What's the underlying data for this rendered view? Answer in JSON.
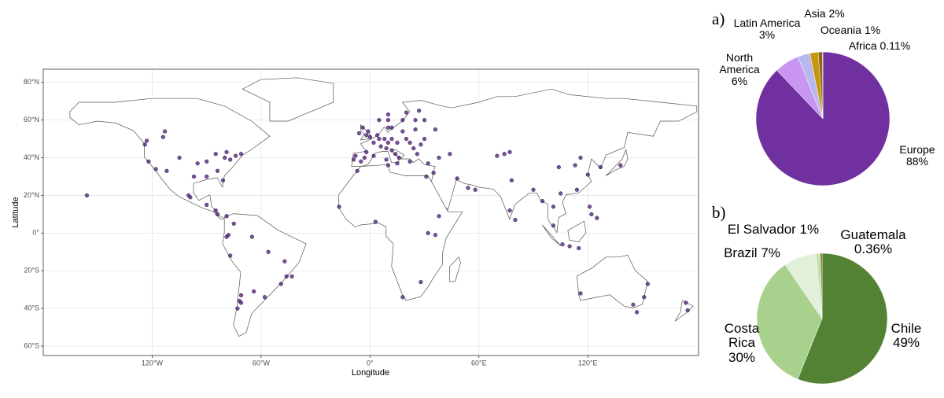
{
  "chart_data": [
    {
      "type": "scatter",
      "x_label": "Longitude",
      "y_label": "Latitude",
      "x": [
        2,
        5,
        8,
        10,
        12,
        15,
        4,
        6,
        9,
        12,
        -3,
        -5,
        -8,
        -2,
        2,
        14,
        16,
        20,
        22,
        18,
        25,
        10,
        12,
        18,
        25,
        10,
        5,
        -2,
        -1,
        -6,
        -4,
        0,
        24,
        26,
        28,
        30,
        36,
        30,
        35,
        32,
        38,
        44,
        22,
        -9,
        10,
        20,
        27,
        15,
        9,
        74,
        70,
        77,
        78,
        77,
        80,
        104,
        116,
        113,
        120,
        114,
        105,
        101,
        121,
        122,
        125,
        101,
        110,
        115,
        127,
        138,
        90,
        95,
        106,
        48,
        58,
        54,
        -124,
        -122,
        -118,
        -112,
        -105,
        -97,
        -95,
        -90,
        -85,
        -80,
        -77,
        -74,
        -71,
        -79,
        -84,
        -81,
        -90,
        -100,
        -99,
        -90,
        -84,
        -85,
        -79,
        -75,
        -78,
        -79,
        -77,
        -65,
        -56,
        -47,
        -43,
        -46,
        -49,
        -58,
        -64,
        -71,
        -72,
        -73,
        -71,
        -113,
        -114,
        -123,
        -156,
        -7,
        10,
        31,
        36,
        32,
        28,
        18,
        3,
        -17,
        38,
        151,
        145,
        153,
        116,
        175,
        174,
        147
      ],
      "y": [
        48,
        50,
        50,
        48,
        50,
        48,
        52,
        46,
        45,
        44,
        40,
        38,
        41,
        43,
        41,
        42,
        40,
        50,
        48,
        54,
        55,
        56,
        56,
        60,
        60,
        60,
        60,
        52,
        54,
        53,
        56,
        51,
        45,
        42,
        47,
        50,
        55,
        60,
        32,
        37,
        40,
        42,
        38,
        39,
        63,
        64,
        65,
        37,
        39,
        42,
        41,
        43,
        28,
        12,
        7,
        35,
        40,
        36,
        31,
        23,
        21,
        14,
        14,
        10,
        8,
        4,
        -7,
        -8,
        35,
        36,
        23,
        17,
        -6,
        29,
        23,
        24,
        47,
        38,
        34,
        33,
        40,
        30,
        37,
        38,
        42,
        40,
        39,
        41,
        42,
        43,
        33,
        28,
        30,
        20,
        19,
        15,
        10,
        12,
        9,
        5,
        -1,
        -2,
        -12,
        -2,
        -10,
        -15,
        -23,
        -23,
        -27,
        -34,
        -31,
        -33,
        -36,
        -40,
        -37,
        54,
        51,
        49,
        20,
        33,
        36,
        30,
        -1,
        0,
        -26,
        -34,
        6,
        14,
        9,
        -34,
        -38,
        -27,
        -32,
        -41,
        -37,
        -42
      ],
      "color": "#4b1a7a",
      "xlim": [
        -180,
        181
      ],
      "ylim": [
        -65,
        87
      ],
      "xticks": [
        {
          "value": -120,
          "label": "120°W"
        },
        {
          "value": -60,
          "label": "60°W"
        },
        {
          "value": 0,
          "label": "0°"
        },
        {
          "value": 60,
          "label": "60°E"
        },
        {
          "value": 120,
          "label": "120°E"
        }
      ],
      "yticks": [
        {
          "value": -60,
          "label": "60°S"
        },
        {
          "value": -40,
          "label": "40°S"
        },
        {
          "value": -20,
          "label": "20°S"
        },
        {
          "value": 0,
          "label": "0°"
        },
        {
          "value": 20,
          "label": "20°N"
        },
        {
          "value": 40,
          "label": "40°N"
        },
        {
          "value": 60,
          "label": "60°N"
        },
        {
          "value": 80,
          "label": "80°N"
        }
      ],
      "grid": true
    },
    {
      "type": "pie",
      "title": "a)",
      "categories": [
        "Europe",
        "North America",
        "Latin America",
        "Asia",
        "Oceania",
        "Africa"
      ],
      "values": [
        88,
        6,
        3,
        2,
        1,
        0.11
      ],
      "value_labels": [
        "88%",
        "6%",
        "3%",
        "2%",
        "1%",
        "0.11%"
      ],
      "colors": [
        "#7030a0",
        "#c896f0",
        "#b8b8ee",
        "#c8960c",
        "#8b6914",
        "#3a2a00"
      ]
    },
    {
      "type": "pie",
      "title": "b)",
      "categories": [
        "Chile",
        "Costa Rica",
        "Brazil",
        "El Salvador",
        "Guatemala"
      ],
      "values": [
        49,
        30,
        7,
        1,
        0.36
      ],
      "value_labels": [
        "49%",
        "30%",
        "7%",
        "1%",
        "0.36%"
      ],
      "colors": [
        "#548235",
        "#a9d18e",
        "#e2f0d9",
        "#c5e0b4",
        "#7f6000"
      ]
    }
  ]
}
